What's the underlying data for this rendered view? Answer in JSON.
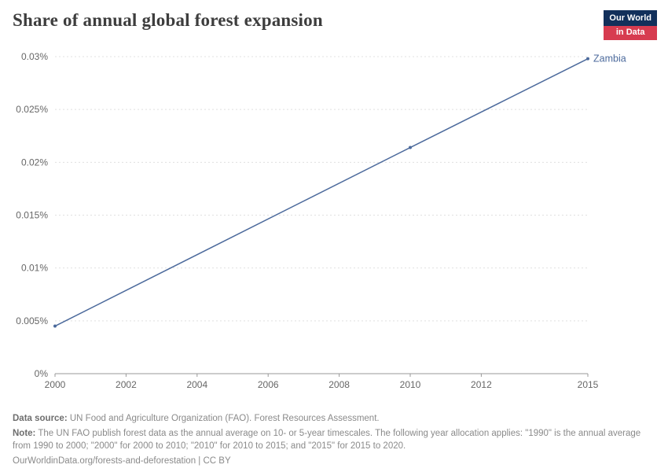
{
  "header": {
    "title": "Share of annual global forest expansion",
    "logo_line1": "Our World",
    "logo_line2": "in Data"
  },
  "colors": {
    "series_blue": "#4C6A9C",
    "logo_navy": "#12305b",
    "logo_red": "#d73c50",
    "gridline": "#e0e0e0",
    "axis_line": "#999999",
    "tick_text": "#666666"
  },
  "chart_data": {
    "type": "line",
    "title": "Share of annual global forest expansion",
    "xlabel": "",
    "ylabel": "",
    "xlim": [
      2000,
      2015
    ],
    "ylim": [
      0,
      0.03
    ],
    "grid": "horizontal-dashed",
    "legend_position": "end-of-line",
    "x_ticks": [
      2000,
      2002,
      2004,
      2006,
      2008,
      2010,
      2012,
      2015
    ],
    "y_ticks": [
      0,
      0.005,
      0.01,
      0.015,
      0.02,
      0.025,
      0.03
    ],
    "y_tick_labels": [
      "0%",
      "0.005%",
      "0.01%",
      "0.015%",
      "0.02%",
      "0.025%",
      "0.03%"
    ],
    "series": [
      {
        "name": "Zambia",
        "color": "#4C6A9C",
        "unit": "%",
        "points": [
          {
            "x": 2000,
            "y": 0.0045
          },
          {
            "x": 2010,
            "y": 0.0214
          },
          {
            "x": 2015,
            "y": 0.0298
          }
        ]
      }
    ]
  },
  "footer": {
    "source_label": "Data source:",
    "source_text": "UN Food and Agriculture Organization (FAO). Forest Resources Assessment.",
    "note_label": "Note:",
    "note_text": "The UN FAO publish forest data as the annual average on 10- or 5-year timescales. The following year allocation applies: \"1990\" is the annual average from 1990 to 2000; \"2000\" for 2000 to 2010; \"2010\" for 2010 to 2015; and \"2015\" for 2015 to 2020.",
    "attribution": "OurWorldinData.org/forests-and-deforestation | CC BY"
  }
}
